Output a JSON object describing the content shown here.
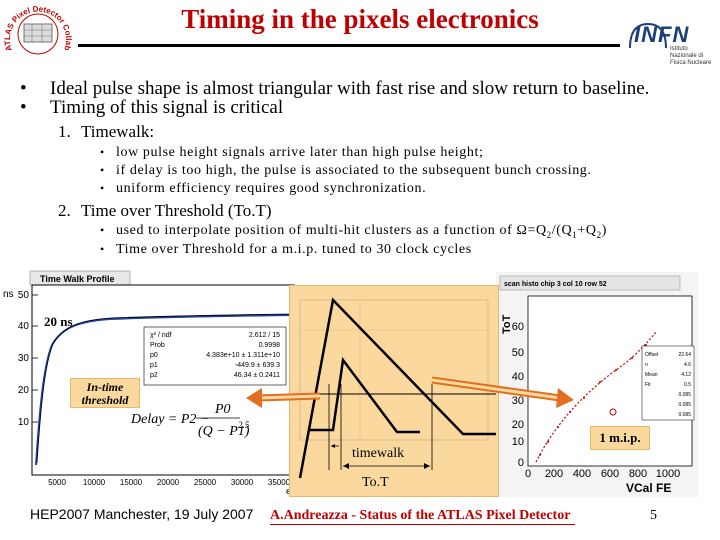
{
  "header": {
    "title": "Timing in the pixels electronics",
    "logo_left": {
      "icon": "atlas-pixel-detector-logo",
      "text": "ATLAS Pixel Detector Collaboration"
    },
    "logo_right": {
      "icon": "infn-logo",
      "text": "INFN",
      "subtext": "Istituto Nazionale di Fisica Nucleare"
    }
  },
  "bullets": [
    {
      "symbol": "•",
      "text": "Ideal pulse shape is almost triangular with fast rise and slow return to baseline."
    },
    {
      "symbol": "•",
      "text": "Timing of this signal is critical"
    }
  ],
  "numbered": [
    {
      "num": "1.",
      "title": "Timewalk:",
      "items": [
        "low pulse height signals arrive later than high pulse height;",
        "if delay is too high, the pulse is associated to the subsequent bunch crossing.",
        "uniform efficiency requires good synchronization."
      ]
    },
    {
      "num": "2.",
      "title": "Time over Threshold (To.T)",
      "items": [
        {
          "pre": "used to interpolate position of multi-hit clusters as a function of Ω=Q",
          "s1": "2",
          "mid1": "/(Q",
          "s2": "1",
          "mid2": "+Q",
          "s3": "2",
          "post": ")"
        },
        "Time over Threshold for a m.i.p. tuned to 30 clock cycles"
      ]
    }
  ],
  "left_plot": {
    "title": "Time Walk Profile",
    "ylabel": "ns",
    "xlabel": "e",
    "yticks": [
      "50",
      "40",
      "30",
      "20",
      "10"
    ],
    "xticks": [
      "5000",
      "10000",
      "15000",
      "20000",
      "25000",
      "30000",
      "35000"
    ],
    "stats": [
      [
        "χ² / ndf",
        "2.612 / 15"
      ],
      [
        "Prob",
        "0.9998"
      ],
      [
        "p0",
        "4.383e+10 ± 1.311e+10"
      ],
      [
        "p1",
        "-449.9 ± 639.3"
      ],
      [
        "p2",
        "46.34 ± 0.2411"
      ]
    ],
    "formula": {
      "lhs": "Delay = P2 −",
      "num": "P0",
      "den": "(Q − P1)",
      "exp": "2.5"
    }
  },
  "right_plot": {
    "title": "scan histo chip 3 col 10 row 52",
    "ylabel": "ToT",
    "xlabel": "VCal FE",
    "yticks": [
      "60",
      "50",
      "40",
      "30",
      "20",
      "10",
      "0"
    ],
    "xticks": [
      "0",
      "200",
      "400",
      "600",
      "800",
      "1000"
    ],
    "stats": [
      [
        "Offset",
        "22.64"
      ],
      [
        "n",
        "4.6"
      ],
      [
        "Mean",
        "4.12"
      ],
      [
        "Fit",
        "0.5"
      ],
      [
        "",
        "0.085"
      ],
      [
        "",
        "0.085"
      ],
      [
        "",
        "0.085"
      ]
    ]
  },
  "annotations": {
    "delay": "20 ns",
    "threshold": "In-time threshold",
    "mip": "1 m.i.p.",
    "timewalk": "timewalk",
    "tot": "To.T"
  },
  "footer": {
    "left": "HEP2007 Manchester, 19 July 2007",
    "center": "A.Andreazza - Status of the ATLAS Pixel Detector",
    "page": "5"
  },
  "colors": {
    "title": "#c00000",
    "accent_box": "#fbd99e",
    "arrow": "#e07020",
    "plot_curve": "#1f3fa0"
  }
}
